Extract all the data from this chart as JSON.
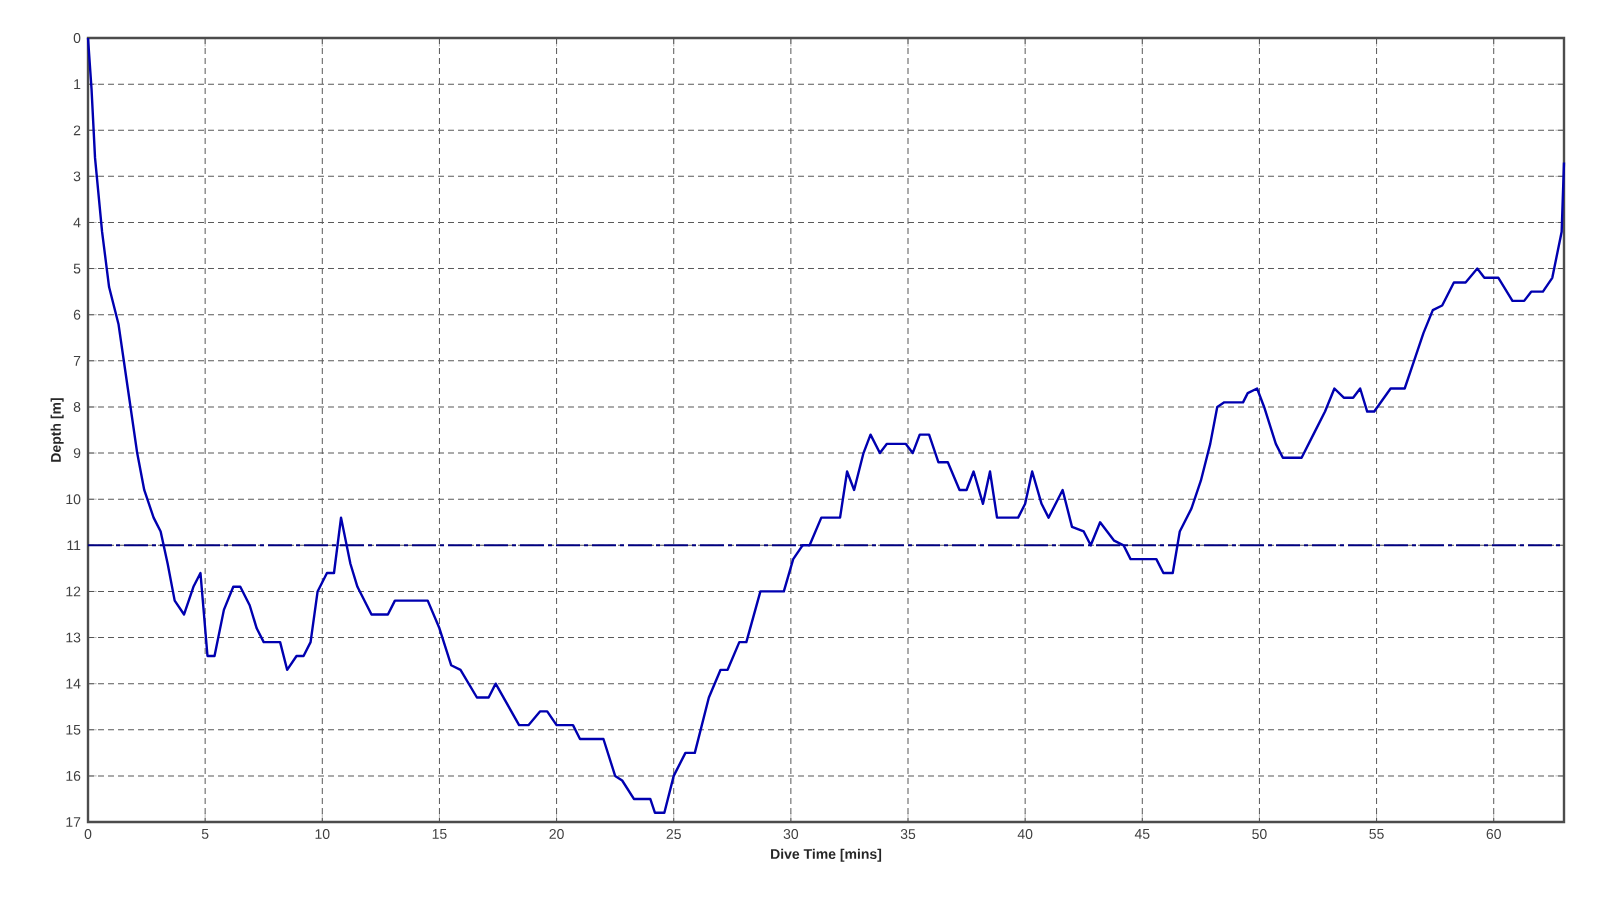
{
  "chart_data": {
    "type": "line",
    "xlabel": "Dive Time [mins]",
    "ylabel": "Depth [m]",
    "xlim": [
      0,
      63
    ],
    "ylim": [
      17,
      0
    ],
    "xticks": [
      0,
      5,
      10,
      15,
      20,
      25,
      30,
      35,
      40,
      45,
      50,
      55,
      60
    ],
    "yticks": [
      0,
      1,
      2,
      3,
      4,
      5,
      6,
      7,
      8,
      9,
      10,
      11,
      12,
      13,
      14,
      15,
      16,
      17
    ],
    "grid": true,
    "marker": "none",
    "line_style": "solid",
    "ref_lines": [
      {
        "axis": "y",
        "value": 11,
        "color": "#000080",
        "line_style": "dashdot"
      }
    ],
    "series": [
      {
        "color": "#0000b0",
        "x": [
          0,
          0.15,
          0.3,
          0.6,
          0.9,
          1.3,
          1.7,
          2.1,
          2.4,
          2.8,
          3.1,
          3.4,
          3.7,
          4.1,
          4.5,
          4.8,
          5.1,
          5.4,
          5.8,
          6.2,
          6.5,
          6.9,
          7.2,
          7.5,
          8.2,
          8.5,
          8.9,
          9.2,
          9.5,
          9.8,
          10.2,
          10.5,
          10.8,
          11.2,
          11.5,
          12.1,
          12.8,
          13.1,
          14.5,
          15.0,
          15.5,
          15.9,
          16.6,
          17.1,
          17.4,
          18.4,
          18.8,
          19.3,
          19.6,
          20,
          20.7,
          21,
          22,
          22.5,
          22.8,
          23.3,
          24,
          24.2,
          24.6,
          25,
          25.5,
          25.9,
          26.5,
          27,
          27.3,
          27.8,
          28.1,
          28.7,
          29.7,
          30.1,
          30.5,
          30.8,
          31.3,
          32.1,
          32.4,
          32.7,
          33.1,
          33.4,
          33.8,
          34.1,
          34.9,
          35.2,
          35.5,
          35.9,
          36.3,
          36.7,
          37.2,
          37.5,
          37.8,
          38.2,
          38.5,
          38.8,
          39.7,
          40,
          40.3,
          40.7,
          41,
          41.6,
          42,
          42.5,
          42.8,
          43.2,
          43.8,
          44.2,
          44.5,
          45.6,
          45.9,
          46.3,
          46.6,
          47.1,
          47.5,
          47.9,
          48.2,
          48.5,
          49.3,
          49.5,
          49.9,
          50.2,
          50.7,
          51,
          51.8,
          52.3,
          52.8,
          53.2,
          53.6,
          54,
          54.3,
          54.6,
          54.9,
          55.6,
          56.2,
          56.6,
          57,
          57.4,
          57.8,
          58.3,
          58.8,
          59.3,
          59.6,
          60.2,
          60.8,
          61.3,
          61.6,
          62.1,
          62.5,
          62.9,
          63
        ],
        "values": [
          0,
          1.1,
          2.6,
          4.2,
          5.4,
          6.2,
          7.6,
          9.0,
          9.8,
          10.4,
          10.7,
          11.4,
          12.2,
          12.5,
          11.9,
          11.6,
          13.4,
          13.4,
          12.4,
          11.9,
          11.9,
          12.3,
          12.8,
          13.1,
          13.1,
          13.7,
          13.4,
          13.4,
          13.1,
          12.0,
          11.6,
          11.6,
          10.4,
          11.4,
          11.9,
          12.5,
          12.5,
          12.2,
          12.2,
          12.8,
          13.6,
          13.7,
          14.3,
          14.3,
          14.0,
          14.9,
          14.9,
          14.6,
          14.6,
          14.9,
          14.9,
          15.2,
          15.2,
          16.0,
          16.1,
          16.5,
          16.5,
          16.8,
          16.8,
          16.0,
          15.5,
          15.5,
          14.3,
          13.7,
          13.7,
          13.1,
          13.1,
          12.0,
          12.0,
          11.3,
          11.0,
          11.0,
          10.4,
          10.4,
          9.4,
          9.8,
          9.0,
          8.6,
          9.0,
          8.8,
          8.8,
          9.0,
          8.6,
          8.6,
          9.2,
          9.2,
          9.8,
          9.8,
          9.4,
          10.1,
          9.4,
          10.4,
          10.4,
          10.1,
          9.4,
          10.1,
          10.4,
          9.8,
          10.6,
          10.7,
          11.0,
          10.5,
          10.9,
          11.0,
          11.3,
          11.3,
          11.6,
          11.6,
          10.7,
          10.2,
          9.6,
          8.8,
          8.0,
          7.9,
          7.9,
          7.7,
          7.6,
          8.0,
          8.8,
          9.1,
          9.1,
          8.6,
          8.1,
          7.6,
          7.8,
          7.8,
          7.6,
          8.1,
          8.1,
          7.6,
          7.6,
          7.0,
          6.4,
          5.9,
          5.8,
          5.3,
          5.3,
          5.0,
          5.2,
          5.2,
          5.7,
          5.7,
          5.5,
          5.5,
          5.2,
          4.2,
          2.7
        ]
      }
    ]
  }
}
